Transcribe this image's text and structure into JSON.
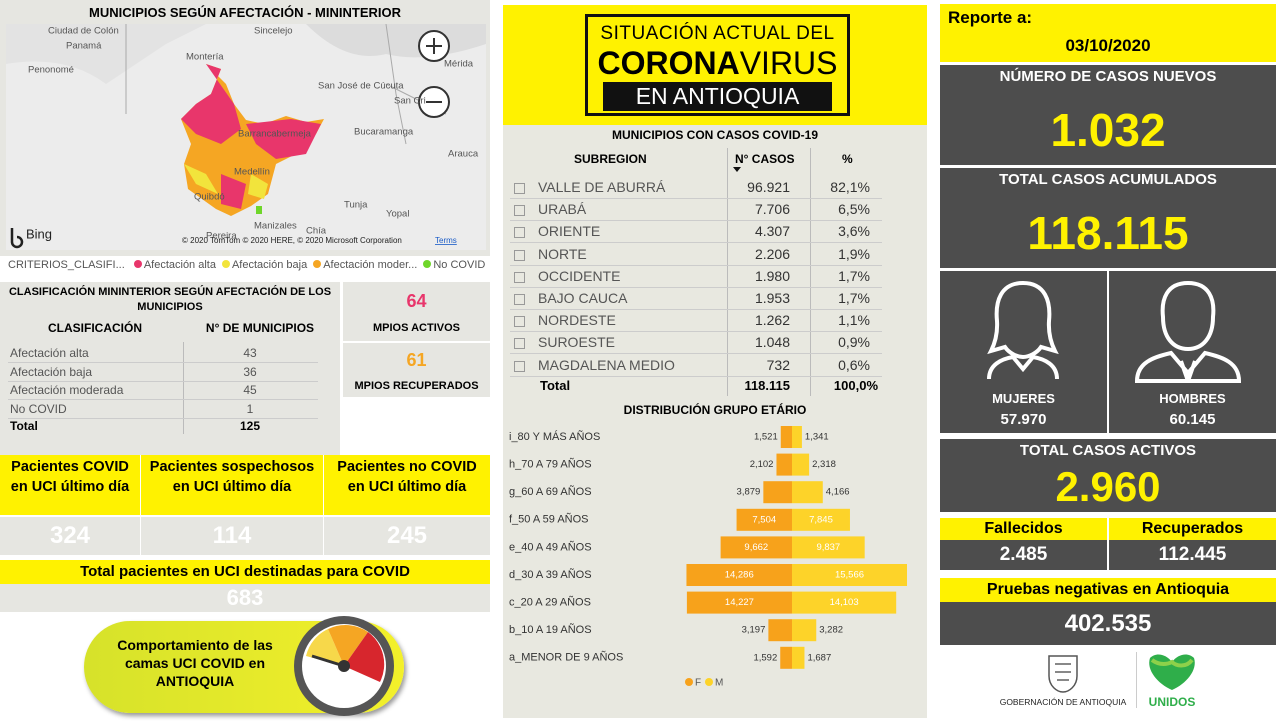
{
  "map_panel": {
    "title": "MUNICIPIOS SEGÚN AFECTACIÓN - MININTERIOR",
    "places": [
      "Ciudad de Colón",
      "Panamá",
      "Montería",
      "Sincelejo",
      "Mérida",
      "Penonomé",
      "San José de Cúcuta",
      "San Cri",
      "Barrancabermeja",
      "Bucaramanga",
      "Arauca",
      "Medellín",
      "Quibdó",
      "Tunja",
      "Yopal",
      "Manizales",
      "Chía",
      "Pereira"
    ],
    "bing": "Bing",
    "attribution": "© 2020 TomTom © 2020 HERE, © 2020 Microsoft Corporation",
    "terms": "Terms",
    "legend_title": "CRITERIOS_CLASIFI...",
    "legend": [
      {
        "label": "Afectación alta",
        "color": "#e8366b"
      },
      {
        "label": "Afectación baja",
        "color": "#f2e43c"
      },
      {
        "label": "Afectación moder...",
        "color": "#f5a623"
      },
      {
        "label": "No COVID",
        "color": "#6fd62a"
      }
    ]
  },
  "classification_table": {
    "title": "CLASIFICACIÓN MININTERIOR SEGÚN AFECTACIÓN DE LOS MUNICIPIOS",
    "headers": [
      "CLASIFICACIÓN",
      "N° DE MUNICIPIOS"
    ],
    "rows": [
      [
        "Afectación alta",
        "43"
      ],
      [
        "Afectación baja",
        "36"
      ],
      [
        "Afectación moderada",
        "45"
      ],
      [
        "No COVID",
        "1"
      ]
    ],
    "total": [
      "Total",
      "125"
    ]
  },
  "active_munis": {
    "value": "64",
    "label": "MPIOS ACTIVOS"
  },
  "recovered_munis": {
    "value": "61",
    "label": "MPIOS RECUPERADOS"
  },
  "icu": [
    {
      "label": "Pacientes COVID en UCI último día",
      "value": "324"
    },
    {
      "label": "Pacientes sospechosos en UCI último día",
      "value": "114"
    },
    {
      "label": "Pacientes no COVID en UCI último día",
      "value": "245"
    }
  ],
  "icu_total": {
    "label": "Total pacientes en UCI destinadas para COVID",
    "value": "683"
  },
  "icu_button": "Comportamiento de las camas UCI COVID en ANTIOQUIA",
  "header": {
    "line1": "SITUACIÓN ACTUAL DEL",
    "corona": "CORONA",
    "virus": "VIRUS",
    "line3": "EN ANTIOQUIA"
  },
  "municipios_table": {
    "title": "MUNICIPIOS CON CASOS COVID-19",
    "headers": [
      "SUBREGION",
      "N° CASOS",
      "%"
    ],
    "rows": [
      [
        "VALLE DE ABURRÁ",
        "96.921",
        "82,1%"
      ],
      [
        "URABÁ",
        "7.706",
        "6,5%"
      ],
      [
        "ORIENTE",
        "4.307",
        "3,6%"
      ],
      [
        "NORTE",
        "2.206",
        "1,9%"
      ],
      [
        "OCCIDENTE",
        "1.980",
        "1,7%"
      ],
      [
        "BAJO CAUCA",
        "1.953",
        "1,7%"
      ],
      [
        "NORDESTE",
        "1.262",
        "1,1%"
      ],
      [
        "SUROESTE",
        "1.048",
        "0,9%"
      ],
      [
        "MAGDALENA MEDIO",
        "732",
        "0,6%"
      ]
    ],
    "total": [
      "Total",
      "118.115",
      "100,0%"
    ]
  },
  "chart_data": {
    "type": "pyramid",
    "title": "DISTRIBUCIÓN GRUPO ETÁRIO",
    "categories": [
      "i_80 Y MÁS AÑOS",
      "h_70 A 79 AÑOS",
      "g_60 A 69 AÑOS",
      "f_50 A 59 AÑOS",
      "e_40 A 49 AÑOS",
      "d_30 A 39 AÑOS",
      "c_20 A 29 AÑOS",
      "b_10 A 19 AÑOS",
      "a_MENOR DE 9 AÑOS"
    ],
    "series": [
      {
        "name": "F",
        "color": "#f7a21b",
        "values": [
          1521,
          2102,
          3879,
          7504,
          9662,
          14286,
          14227,
          3197,
          1592
        ],
        "value_labels": [
          "1,521",
          "2,102",
          "3,879",
          "7,504",
          "9,662",
          "14,286",
          "14,227",
          "3,197",
          "1,592"
        ]
      },
      {
        "name": "M",
        "color": "#fdd329",
        "values": [
          1341,
          2318,
          4166,
          7845,
          9837,
          15566,
          14103,
          3282,
          1687
        ],
        "value_labels": [
          "1,341",
          "2,318",
          "4,166",
          "7,845",
          "9,837",
          "15,566",
          "14,103",
          "3,282",
          "1,687"
        ]
      }
    ]
  },
  "report": {
    "label": "Reporte a:",
    "date": "03/10/2020"
  },
  "new_cases": {
    "label": "NÚMERO DE CASOS NUEVOS",
    "value": "1.032"
  },
  "total_cases": {
    "label": "TOTAL CASOS ACUMULADOS",
    "value": "118.115"
  },
  "women": {
    "label": "MUJERES",
    "value": "57.970"
  },
  "men": {
    "label": "HOMBRES",
    "value": "60.145"
  },
  "active_cases": {
    "label": "TOTAL CASOS ACTIVOS",
    "value": "2.960"
  },
  "deaths": {
    "label": "Fallecidos",
    "value": "2.485"
  },
  "recovered": {
    "label": "Recuperados",
    "value": "112.445"
  },
  "negative_tests": {
    "label": "Pruebas negativas en Antioquia",
    "value": "402.535"
  },
  "footer": {
    "gov": "GOBERNACIÓN DE ANTIOQUIA",
    "unidos": "UNIDOS"
  }
}
